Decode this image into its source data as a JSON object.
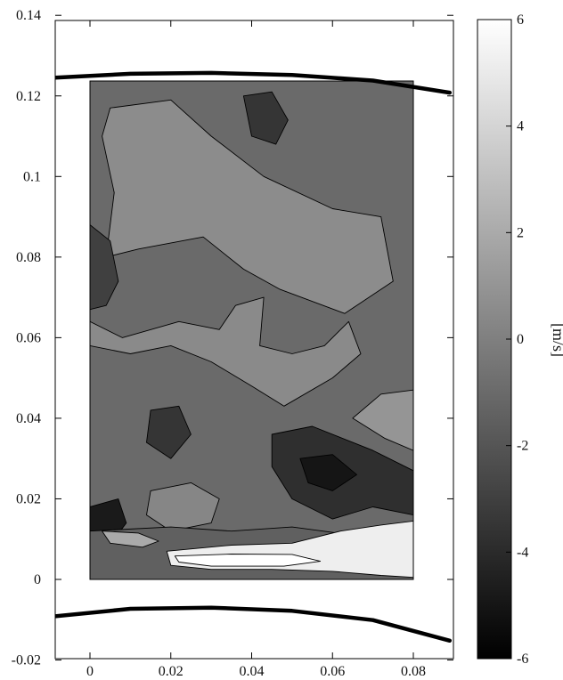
{
  "chart_data": {
    "type": "heatmap",
    "title": "",
    "xlabel": "",
    "ylabel": "",
    "xlim": [
      -0.009,
      0.089
    ],
    "ylim": [
      -0.02,
      0.14
    ],
    "x_ticks": [
      "0",
      "0.02",
      "0.04",
      "0.06",
      "0.08"
    ],
    "y_ticks": [
      "-0.02",
      "0",
      "0.02",
      "0.04",
      "0.06",
      "0.08",
      "0.1",
      "0.12",
      "0.14"
    ],
    "field_extent": {
      "x": [
        0,
        0.08
      ],
      "y": [
        0,
        0.1237
      ]
    },
    "grid": false,
    "colormap": "grayscale",
    "colorbar": {
      "label": "[m/s]",
      "range": [
        -6,
        6
      ],
      "ticks": [
        "-6",
        "-4",
        "-2",
        "0",
        "2",
        "4",
        "6"
      ],
      "position": "right"
    },
    "boundaries": [
      {
        "name": "upper-wall",
        "points": [
          [
            -0.009,
            0.1245
          ],
          [
            0.01,
            0.1255
          ],
          [
            0.03,
            0.1257
          ],
          [
            0.05,
            0.1252
          ],
          [
            0.07,
            0.1238
          ],
          [
            0.089,
            0.1208
          ]
        ]
      },
      {
        "name": "lower-wall",
        "points": [
          [
            -0.009,
            -0.0092
          ],
          [
            0.01,
            -0.0073
          ],
          [
            0.03,
            -0.007
          ],
          [
            0.05,
            -0.0078
          ],
          [
            0.07,
            -0.0101
          ],
          [
            0.089,
            -0.0152
          ]
        ]
      }
    ],
    "regions": [
      {
        "name": "mid-field",
        "level": -1.0,
        "points": [
          [
            0.0,
            0.0
          ],
          [
            0.08,
            0.0
          ],
          [
            0.08,
            0.1237
          ],
          [
            0.0,
            0.1237
          ]
        ]
      },
      {
        "name": "upper-light-area",
        "level": 0.6,
        "points": [
          [
            0.005,
            0.117
          ],
          [
            0.02,
            0.119
          ],
          [
            0.03,
            0.11
          ],
          [
            0.043,
            0.1
          ],
          [
            0.06,
            0.092
          ],
          [
            0.072,
            0.09
          ],
          [
            0.075,
            0.074
          ],
          [
            0.063,
            0.066
          ],
          [
            0.047,
            0.072
          ],
          [
            0.038,
            0.077
          ],
          [
            0.028,
            0.085
          ],
          [
            0.012,
            0.082
          ],
          [
            0.004,
            0.08
          ],
          [
            0.006,
            0.096
          ],
          [
            0.003,
            0.11
          ]
        ]
      },
      {
        "name": "mid-light-area",
        "level": 0.5,
        "points": [
          [
            0.0,
            0.064
          ],
          [
            0.008,
            0.06
          ],
          [
            0.022,
            0.064
          ],
          [
            0.032,
            0.062
          ],
          [
            0.036,
            0.068
          ],
          [
            0.043,
            0.07
          ],
          [
            0.042,
            0.058
          ],
          [
            0.05,
            0.056
          ],
          [
            0.058,
            0.058
          ],
          [
            0.064,
            0.064
          ],
          [
            0.067,
            0.056
          ],
          [
            0.06,
            0.05
          ],
          [
            0.048,
            0.043
          ],
          [
            0.04,
            0.048
          ],
          [
            0.03,
            0.054
          ],
          [
            0.02,
            0.058
          ],
          [
            0.01,
            0.056
          ],
          [
            0.0,
            0.058
          ]
        ]
      },
      {
        "name": "left-dark-band",
        "level": -3.0,
        "points": [
          [
            0.0,
            0.088
          ],
          [
            0.005,
            0.084
          ],
          [
            0.007,
            0.074
          ],
          [
            0.004,
            0.068
          ],
          [
            0.0,
            0.067
          ]
        ]
      },
      {
        "name": "upper-dark-patch",
        "level": -3.5,
        "points": [
          [
            0.038,
            0.12
          ],
          [
            0.045,
            0.121
          ],
          [
            0.049,
            0.114
          ],
          [
            0.046,
            0.108
          ],
          [
            0.04,
            0.11
          ]
        ]
      },
      {
        "name": "right-light-area",
        "level": 1.0,
        "points": [
          [
            0.065,
            0.04
          ],
          [
            0.072,
            0.046
          ],
          [
            0.08,
            0.047
          ],
          [
            0.08,
            0.032
          ],
          [
            0.073,
            0.035
          ]
        ]
      },
      {
        "name": "lower-dark-area",
        "level": -3.8,
        "points": [
          [
            0.045,
            0.036
          ],
          [
            0.055,
            0.038
          ],
          [
            0.07,
            0.032
          ],
          [
            0.08,
            0.027
          ],
          [
            0.08,
            0.016
          ],
          [
            0.07,
            0.018
          ],
          [
            0.06,
            0.015
          ],
          [
            0.05,
            0.02
          ],
          [
            0.045,
            0.028
          ]
        ]
      },
      {
        "name": "lower-core-dark",
        "level": -5.0,
        "points": [
          [
            0.052,
            0.03
          ],
          [
            0.06,
            0.031
          ],
          [
            0.066,
            0.026
          ],
          [
            0.06,
            0.022
          ],
          [
            0.054,
            0.024
          ]
        ]
      },
      {
        "name": "left-bottom-dark",
        "level": -4.8,
        "points": [
          [
            0.0,
            0.018
          ],
          [
            0.007,
            0.02
          ],
          [
            0.009,
            0.014
          ],
          [
            0.006,
            0.01
          ],
          [
            0.0,
            0.012
          ]
        ]
      },
      {
        "name": "mid-dark-blob",
        "level": -3.5,
        "points": [
          [
            0.015,
            0.042
          ],
          [
            0.022,
            0.043
          ],
          [
            0.025,
            0.036
          ],
          [
            0.02,
            0.03
          ],
          [
            0.014,
            0.034
          ]
        ]
      },
      {
        "name": "lower-mid-light",
        "level": 0.3,
        "points": [
          [
            0.015,
            0.022
          ],
          [
            0.025,
            0.024
          ],
          [
            0.032,
            0.02
          ],
          [
            0.03,
            0.014
          ],
          [
            0.02,
            0.012
          ],
          [
            0.014,
            0.016
          ]
        ]
      },
      {
        "name": "bottom-gray-band",
        "level": -1.5,
        "points": [
          [
            0.0,
            0.012
          ],
          [
            0.02,
            0.013
          ],
          [
            0.035,
            0.012
          ],
          [
            0.05,
            0.013
          ],
          [
            0.065,
            0.011
          ],
          [
            0.08,
            0.012
          ],
          [
            0.08,
            0.0
          ],
          [
            0.0,
            0.0
          ]
        ]
      },
      {
        "name": "bottom-bright-area",
        "level": 5.2,
        "points": [
          [
            0.019,
            0.007
          ],
          [
            0.035,
            0.0085
          ],
          [
            0.05,
            0.009
          ],
          [
            0.062,
            0.012
          ],
          [
            0.072,
            0.0135
          ],
          [
            0.08,
            0.0145
          ],
          [
            0.08,
            0.0005
          ],
          [
            0.072,
            0.001
          ],
          [
            0.06,
            0.002
          ],
          [
            0.045,
            0.0025
          ],
          [
            0.03,
            0.0025
          ],
          [
            0.02,
            0.0035
          ]
        ]
      },
      {
        "name": "bottom-bright-strip",
        "level": 6.0,
        "points": [
          [
            0.021,
            0.0058
          ],
          [
            0.035,
            0.0063
          ],
          [
            0.05,
            0.0062
          ],
          [
            0.057,
            0.0045
          ],
          [
            0.048,
            0.0033
          ],
          [
            0.03,
            0.0033
          ],
          [
            0.022,
            0.0043
          ]
        ]
      },
      {
        "name": "bottom-left-light",
        "level": 2.0,
        "points": [
          [
            0.003,
            0.012
          ],
          [
            0.012,
            0.0115
          ],
          [
            0.017,
            0.0095
          ],
          [
            0.013,
            0.008
          ],
          [
            0.005,
            0.009
          ]
        ]
      }
    ]
  }
}
